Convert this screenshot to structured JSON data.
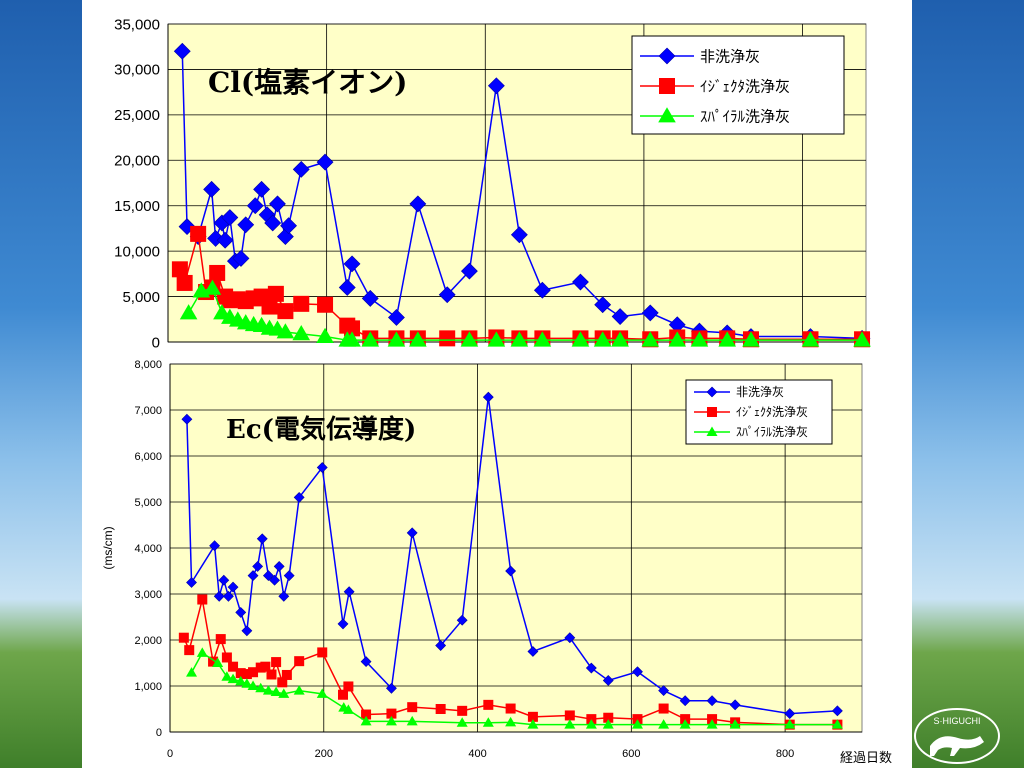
{
  "slide": {
    "logo_text": "S·HIGUCHI"
  },
  "chart_data": [
    {
      "type": "line",
      "title": "Cl(塩素イオン)",
      "xlabel": "",
      "ylabel": "",
      "xlim": [
        0,
        880
      ],
      "ylim": [
        0,
        35000
      ],
      "xticks": [
        0,
        200,
        400,
        600,
        800
      ],
      "yticks": [
        0,
        5000,
        10000,
        15000,
        20000,
        25000,
        30000,
        35000
      ],
      "ytick_labels": [
        "0",
        "5,000",
        "10,000",
        "15,000",
        "20,000",
        "25,000",
        "30,000",
        "35,000"
      ],
      "grid": true,
      "legend": "top-right",
      "series": [
        {
          "name": "非洗浄灰",
          "color": "#0000ff",
          "marker": "diamond",
          "x": [
            18,
            24,
            38,
            55,
            60,
            68,
            72,
            78,
            85,
            92,
            98,
            110,
            118,
            125,
            132,
            138,
            148,
            152,
            168,
            198,
            226,
            232,
            255,
            288,
            315,
            352,
            380,
            414,
            443,
            472,
            520,
            548,
            570,
            608,
            642,
            670,
            705,
            735,
            810,
            875
          ],
          "y": [
            32000,
            12700,
            11600,
            16800,
            11400,
            13100,
            11200,
            13700,
            8900,
            9200,
            12900,
            15000,
            16800,
            14000,
            13100,
            15200,
            11600,
            12800,
            19000,
            19800,
            6000,
            8600,
            4800,
            2700,
            15200,
            5200,
            7800,
            28200,
            11800,
            5700,
            6600,
            4100,
            2800,
            3200,
            1900,
            1200,
            1000,
            600,
            600,
            400
          ]
        },
        {
          "name": "ｲｼﾞｪｸﾀ洗浄灰",
          "color": "#ff0000",
          "marker": "square",
          "x": [
            15,
            21,
            38,
            48,
            56,
            62,
            72,
            78,
            88,
            98,
            108,
            118,
            128,
            136,
            148,
            168,
            198,
            226,
            232,
            255,
            288,
            315,
            352,
            380,
            414,
            443,
            472,
            520,
            548,
            570,
            608,
            642,
            670,
            705,
            735,
            810,
            875
          ],
          "y": [
            8000,
            6500,
            11900,
            5500,
            6000,
            7600,
            5000,
            4600,
            4700,
            4500,
            4800,
            5000,
            3900,
            5300,
            3400,
            4200,
            4100,
            1800,
            1500,
            400,
            400,
            400,
            400,
            400,
            500,
            400,
            400,
            400,
            400,
            400,
            300,
            500,
            400,
            400,
            300,
            300,
            300
          ]
        },
        {
          "name": "ｽﾊﾟｲﾗﾙ洗浄灰",
          "color": "#00ff00",
          "marker": "triangle",
          "x": [
            26,
            42,
            56,
            68,
            78,
            88,
            98,
            108,
            118,
            128,
            138,
            148,
            168,
            198,
            226,
            232,
            255,
            288,
            315,
            380,
            414,
            443,
            472,
            520,
            548,
            570,
            608,
            642,
            670,
            705,
            735,
            810,
            875
          ],
          "y": [
            3200,
            5600,
            5900,
            3200,
            2700,
            2400,
            2100,
            1900,
            1800,
            1500,
            1400,
            1100,
            900,
            600,
            200,
            200,
            200,
            200,
            200,
            200,
            200,
            200,
            200,
            200,
            200,
            200,
            200,
            200,
            200,
            200,
            200,
            200,
            200
          ]
        }
      ]
    },
    {
      "type": "line",
      "title": "Ec(電気伝導度)",
      "xlabel": "経過日数",
      "ylabel": "(ms/cm)",
      "xlim": [
        0,
        900
      ],
      "ylim": [
        0,
        8000
      ],
      "xticks": [
        0,
        200,
        400,
        600,
        800
      ],
      "yticks": [
        0,
        1000,
        2000,
        3000,
        4000,
        5000,
        6000,
        7000,
        8000
      ],
      "ytick_labels": [
        "0",
        "1,000",
        "2,000",
        "3,000",
        "4,000",
        "5,000",
        "6,000",
        "7,000",
        "8,000"
      ],
      "grid": true,
      "legend": "top-right",
      "series": [
        {
          "name": "非洗浄灰",
          "color": "#0000ff",
          "marker": "diamond",
          "x": [
            22,
            28,
            58,
            64,
            70,
            76,
            82,
            92,
            100,
            108,
            114,
            120,
            128,
            136,
            142,
            148,
            155,
            168,
            198,
            225,
            233,
            255,
            288,
            315,
            352,
            380,
            414,
            443,
            472,
            520,
            548,
            570,
            608,
            642,
            670,
            705,
            735,
            806,
            868
          ],
          "y": [
            6800,
            3250,
            4050,
            2950,
            3300,
            2950,
            3150,
            2600,
            2200,
            3400,
            3600,
            4200,
            3400,
            3300,
            3600,
            2950,
            3400,
            5100,
            5750,
            2350,
            3050,
            1530,
            950,
            4330,
            1880,
            2430,
            7280,
            3500,
            1750,
            2050,
            1390,
            1120,
            1310,
            900,
            680,
            680,
            590,
            400,
            460
          ]
        },
        {
          "name": "ｲｼﾞｪｸﾀ洗浄灰",
          "color": "#ff0000",
          "marker": "square",
          "x": [
            18,
            25,
            42,
            56,
            66,
            74,
            82,
            92,
            100,
            108,
            118,
            124,
            132,
            138,
            146,
            152,
            168,
            198,
            225,
            232,
            255,
            288,
            315,
            352,
            380,
            414,
            443,
            472,
            520,
            548,
            570,
            608,
            642,
            670,
            705,
            735,
            806,
            868
          ],
          "y": [
            2050,
            1780,
            2880,
            1530,
            2020,
            1620,
            1420,
            1280,
            1260,
            1300,
            1400,
            1420,
            1250,
            1520,
            1080,
            1240,
            1540,
            1730,
            810,
            990,
            380,
            400,
            540,
            500,
            460,
            590,
            510,
            330,
            360,
            280,
            310,
            280,
            510,
            280,
            280,
            210,
            160,
            160
          ]
        },
        {
          "name": "ｽﾊﾟｲﾗﾙ洗浄灰",
          "color": "#00ff00",
          "marker": "triangle",
          "x": [
            28,
            42,
            62,
            74,
            82,
            92,
            100,
            108,
            118,
            128,
            138,
            148,
            168,
            198,
            226,
            232,
            255,
            288,
            315,
            380,
            414,
            443,
            472,
            520,
            548,
            570,
            608,
            642,
            670,
            705,
            735,
            806,
            868
          ],
          "y": [
            1290,
            1720,
            1500,
            1200,
            1150,
            1100,
            1050,
            1000,
            950,
            900,
            870,
            830,
            900,
            830,
            530,
            480,
            230,
            230,
            230,
            200,
            200,
            210,
            160,
            160,
            160,
            160,
            160,
            160,
            160,
            160,
            160,
            160,
            160
          ]
        }
      ]
    }
  ]
}
